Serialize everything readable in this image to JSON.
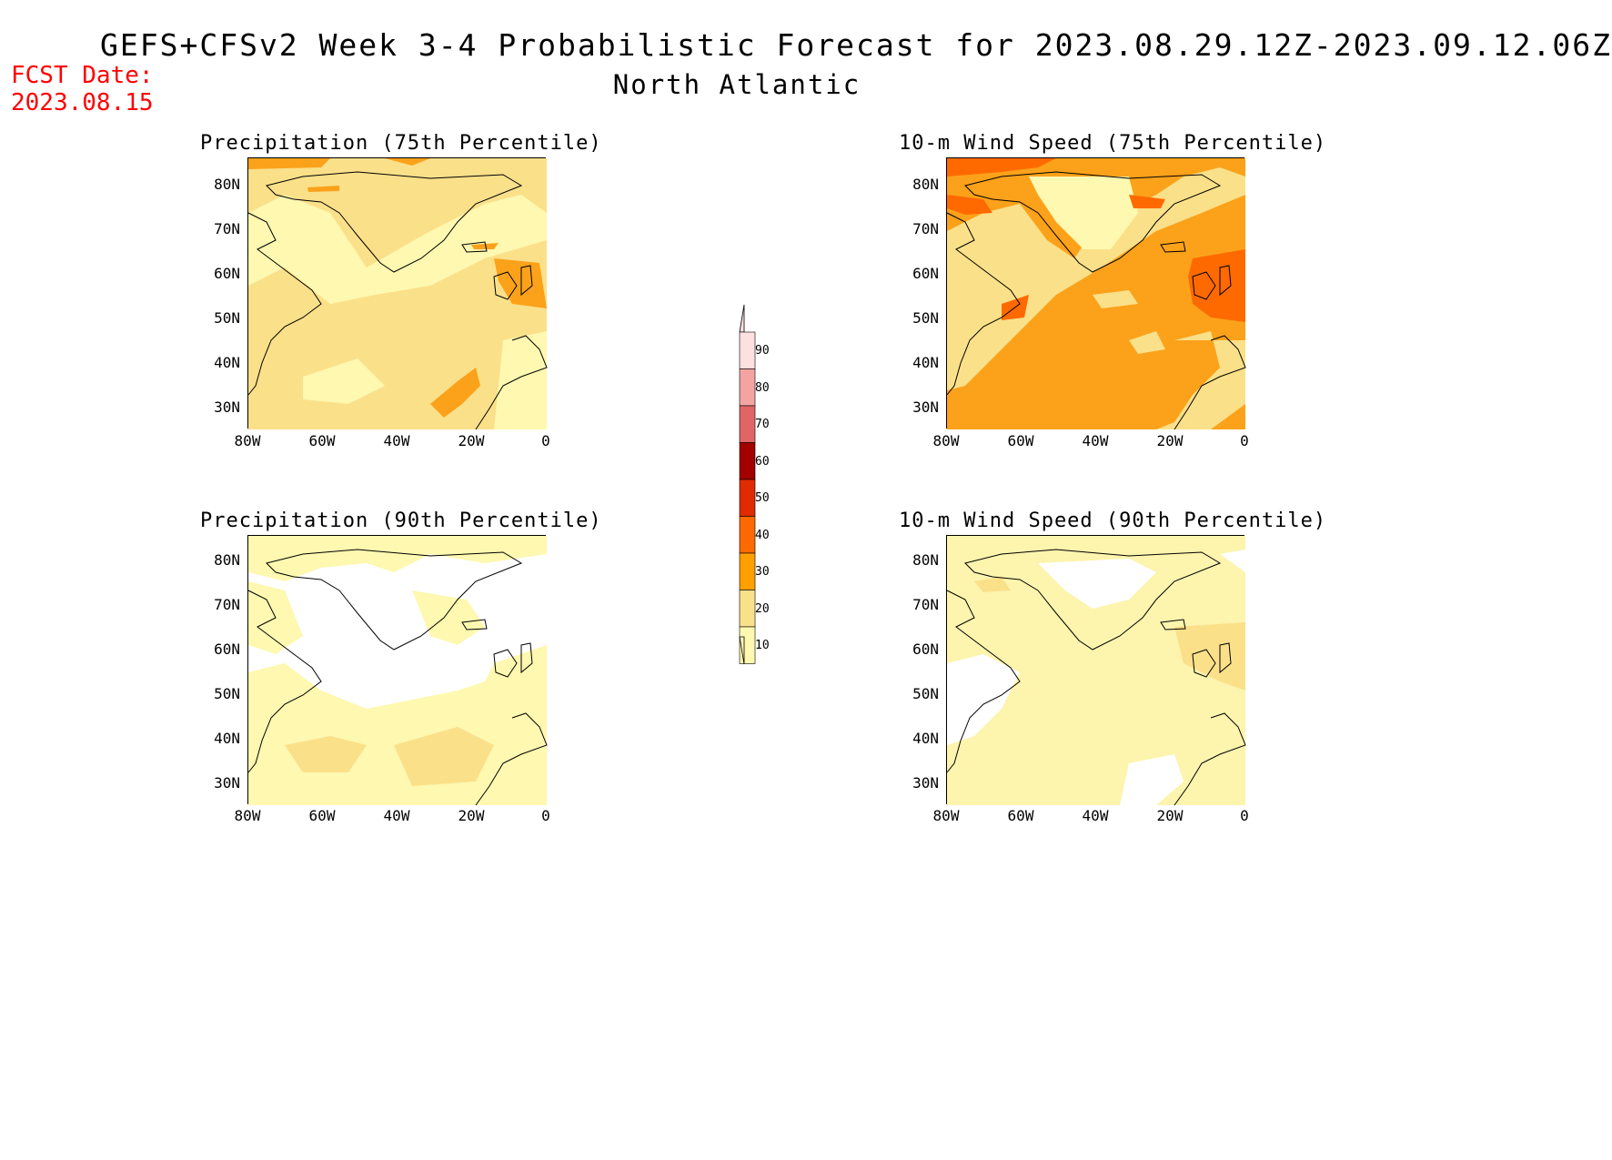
{
  "header": {
    "title": "GEFS+CFSv2 Week 3-4 Probabilistic Forecast for 2023.08.29.12Z-2023.09.12.06Z",
    "subtitle": "North Atlantic",
    "fcst_label": "FCST Date:",
    "fcst_date": "2023.08.15"
  },
  "axes": {
    "lat_labels": [
      "80N",
      "70N",
      "60N",
      "50N",
      "40N",
      "30N"
    ],
    "lon_labels": [
      "80W",
      "60W",
      "40W",
      "20W",
      "0"
    ]
  },
  "panels": [
    {
      "title": "Precipitation (75th Percentile)",
      "background": "#fbe08a"
    },
    {
      "title": "10-m Wind Speed (75th Percentile)",
      "background": "#fba21a"
    },
    {
      "title": "Precipitation (90th Percentile)",
      "background": "#ffffff"
    },
    {
      "title": "10-m Wind Speed (90th Percentile)",
      "background": "#fdf4ae"
    }
  ],
  "colorbar": {
    "labels": [
      "90",
      "80",
      "70",
      "60",
      "50",
      "40",
      "30",
      "20",
      "10"
    ],
    "colors": [
      "#fde0e0",
      "#f4a3a3",
      "#e06666",
      "#a30000",
      "#e02a00",
      "#ff6a00",
      "#ff9f00",
      "#fbe08a",
      "#fef8b0"
    ]
  }
}
